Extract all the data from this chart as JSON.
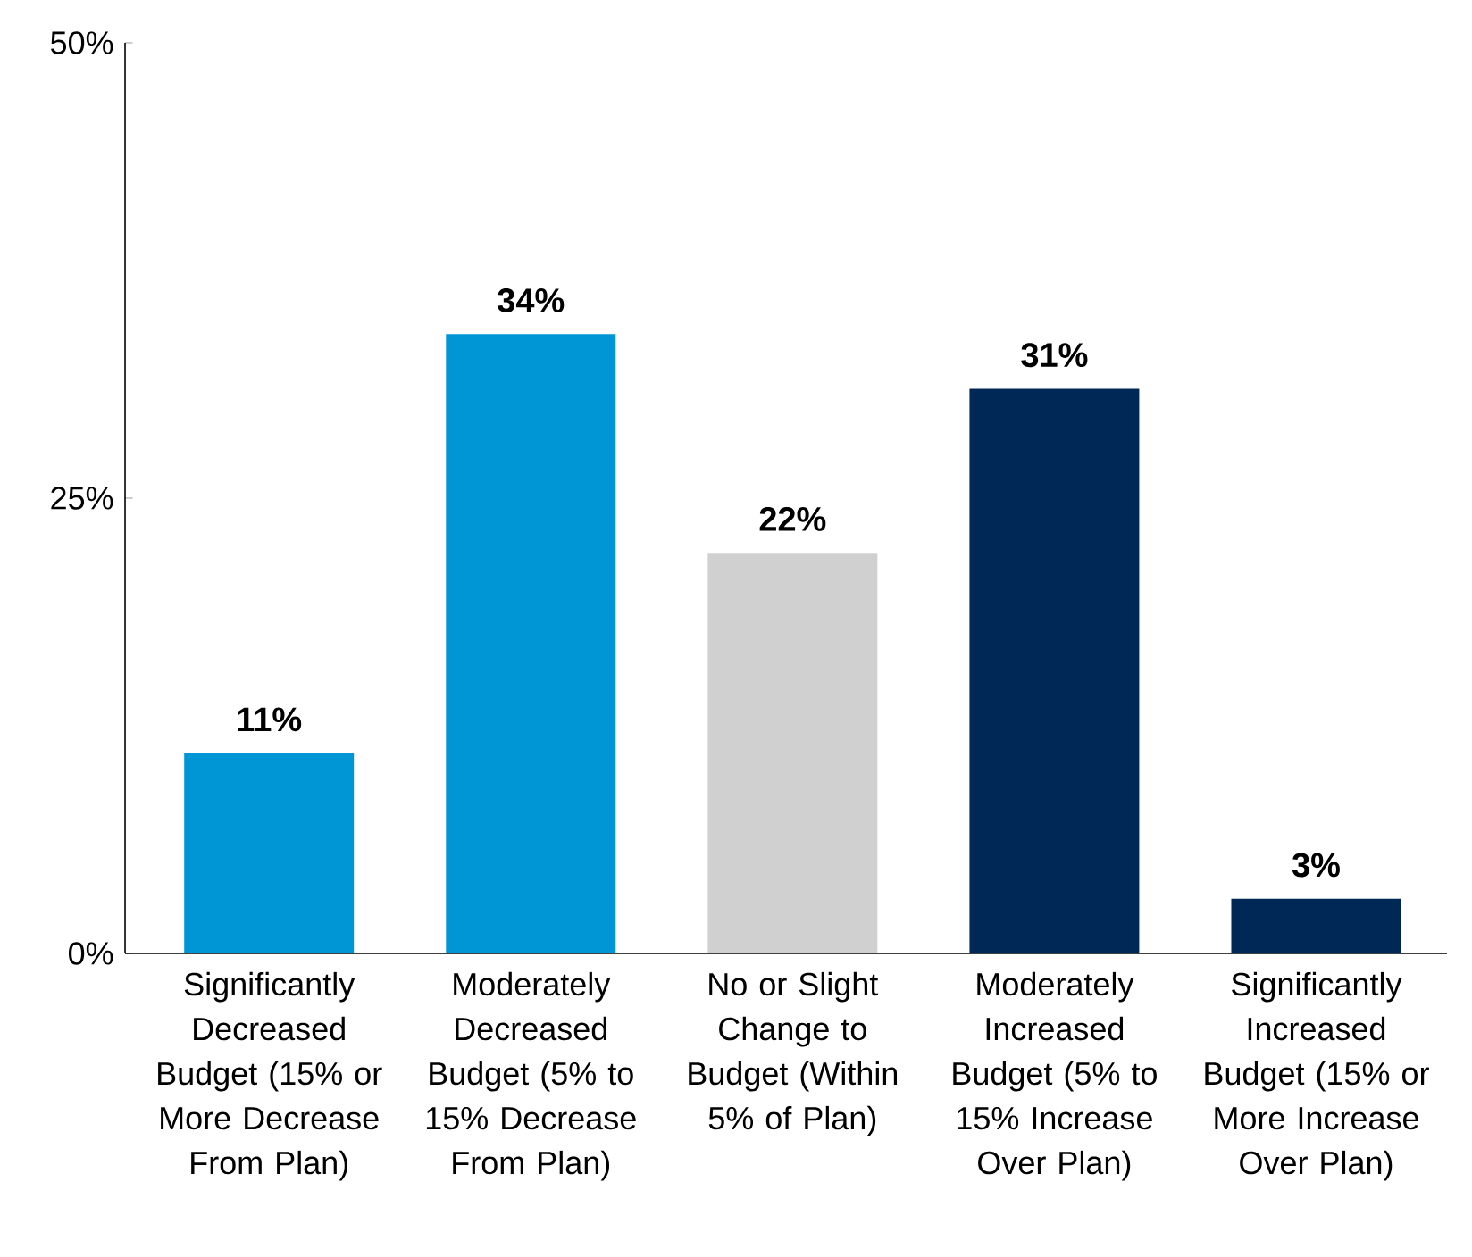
{
  "chart_data": {
    "type": "bar",
    "categories": [
      "Significantly Decreased Budget (15% or More Decrease From Plan)",
      "Moderately Decreased Budget (5% to 15% Decrease From Plan)",
      "No or Slight Change to Budget (Within 5% of Plan)",
      "Moderately Increased Budget (5% to 15% Increase Over Plan)",
      "Significantly Increased Budget (15% or More Increase Over Plan)"
    ],
    "values": [
      11,
      34,
      22,
      31,
      3
    ],
    "colors": [
      "#0096d6",
      "#0096d6",
      "#d0d0d0",
      "#002856",
      "#002856"
    ],
    "value_labels": [
      "11%",
      "34%",
      "22%",
      "31%",
      "3%"
    ],
    "ylim": [
      0,
      50
    ],
    "yticks": [
      {
        "value": 0,
        "label": "0%"
      },
      {
        "value": 25,
        "label": "25%"
      },
      {
        "value": 50,
        "label": "50%"
      }
    ],
    "grid": false
  }
}
